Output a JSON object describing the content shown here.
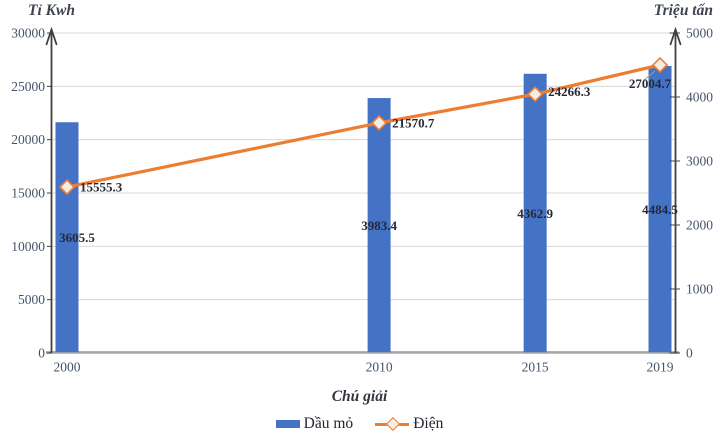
{
  "chart_data": {
    "type": "combo-bar-line",
    "x_values": [
      2000,
      2010,
      2015,
      2019
    ],
    "x_labels": [
      "2000",
      "2010",
      "2015",
      "2019"
    ],
    "series": [
      {
        "name": "Dầu mỏ",
        "type": "bar",
        "axis": "right",
        "color": "#4472C4",
        "values": [
          3605.5,
          3983.4,
          4362.9,
          4484.5
        ],
        "labels": [
          "3605.5",
          "3983.4",
          "4362.9",
          "4484.5"
        ]
      },
      {
        "name": "Điện",
        "type": "line",
        "axis": "left",
        "color": "#ED7D31",
        "marker": "diamond",
        "marker_fill": "#F3EEE4",
        "values": [
          15555.3,
          21570.7,
          24266.3,
          27004.7
        ],
        "labels": [
          "15555.3",
          "21570.7",
          "24266.3",
          "27004.7"
        ]
      }
    ],
    "left_axis": {
      "title": "Tỉ Kwh",
      "min": 0,
      "max": 30000,
      "tick_step": 5000,
      "ticks": [
        "0",
        "5000",
        "10000",
        "15000",
        "20000",
        "25000",
        "30000"
      ]
    },
    "right_axis": {
      "title": "Triệu tấn",
      "min": 0,
      "max": 5000,
      "tick_step": 1000,
      "ticks": [
        "0",
        "1000",
        "2000",
        "3000",
        "4000",
        "5000"
      ]
    },
    "legend": {
      "title": "Chú giải",
      "position": "bottom",
      "items": [
        "Dầu mỏ",
        "Điện"
      ]
    },
    "grid": true,
    "colors": {
      "gridline": "#D9D9D9",
      "x_axis_line": "#A6A6A6",
      "y_axis_line": "#404040",
      "tick_text": "#44546A",
      "data_label_text": "#242936",
      "leader_line": "#a0a0a0"
    }
  }
}
